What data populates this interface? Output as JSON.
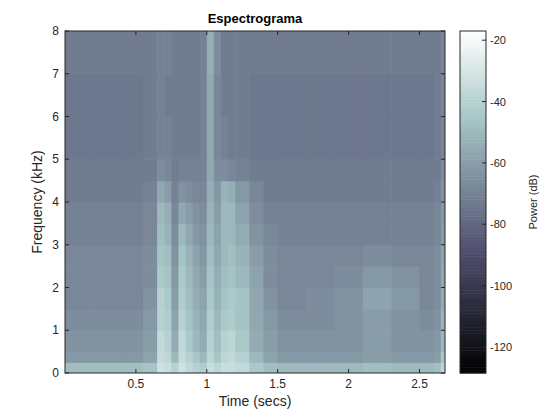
{
  "chart_data": {
    "type": "heatmap",
    "title": "Espectrograma",
    "x_label": "Time (secs)",
    "y_label": "Frequency (kHz)",
    "colorbar_label": "Power (dB)",
    "xlim": [
      0,
      2.68
    ],
    "ylim": [
      0,
      8
    ],
    "xticks": [
      0.5,
      1,
      1.5,
      2,
      2.5
    ],
    "yticks": [
      0,
      1,
      2,
      3,
      4,
      5,
      6,
      7,
      8
    ],
    "x_bins": [
      0,
      0.2,
      0.4,
      0.55,
      0.65,
      0.7,
      0.75,
      0.8,
      0.85,
      0.9,
      0.95,
      1.0,
      1.05,
      1.1,
      1.15,
      1.2,
      1.3,
      1.4,
      1.5,
      1.7,
      1.9,
      2.1,
      2.3,
      2.5,
      2.6,
      2.65,
      2.68
    ],
    "y_bins": [
      0,
      0.25,
      0.5,
      1,
      1.5,
      2,
      2.5,
      3,
      3.5,
      4,
      4.5,
      5,
      6,
      7,
      8
    ],
    "values": [
      [
        -48,
        -48,
        -48,
        -46,
        -32,
        -34,
        -40,
        -32,
        -36,
        -40,
        -42,
        -34,
        -38,
        -34,
        -34,
        -36,
        -44,
        -48,
        -50,
        -50,
        -50,
        -48,
        -50,
        -50,
        -48,
        -38
      ],
      [
        -62,
        -62,
        -62,
        -58,
        -35,
        -38,
        -50,
        -35,
        -40,
        -45,
        -50,
        -38,
        -45,
        -38,
        -36,
        -40,
        -50,
        -58,
        -62,
        -62,
        -62,
        -60,
        -62,
        -62,
        -60,
        -45
      ],
      [
        -64,
        -64,
        -64,
        -60,
        -36,
        -40,
        -55,
        -36,
        -44,
        -50,
        -55,
        -40,
        -48,
        -40,
        -38,
        -44,
        -55,
        -60,
        -64,
        -64,
        -64,
        -60,
        -64,
        -64,
        -62,
        -50
      ],
      [
        -66,
        -66,
        -66,
        -62,
        -40,
        -42,
        -58,
        -40,
        -46,
        -52,
        -56,
        -42,
        -50,
        -44,
        -42,
        -46,
        -56,
        -62,
        -66,
        -66,
        -64,
        -60,
        -64,
        -66,
        -64,
        -52
      ],
      [
        -68,
        -68,
        -68,
        -64,
        -40,
        -44,
        -60,
        -42,
        -48,
        -54,
        -58,
        -44,
        -52,
        -46,
        -44,
        -46,
        -56,
        -64,
        -68,
        -66,
        -64,
        -58,
        -62,
        -68,
        -66,
        -55
      ],
      [
        -68,
        -68,
        -68,
        -66,
        -44,
        -46,
        -62,
        -44,
        -50,
        -56,
        -60,
        -46,
        -54,
        -48,
        -46,
        -50,
        -58,
        -66,
        -68,
        -68,
        -66,
        -62,
        -64,
        -68,
        -66,
        -56
      ],
      [
        -68,
        -68,
        -68,
        -66,
        -46,
        -48,
        -64,
        -46,
        -52,
        -58,
        -62,
        -48,
        -56,
        -50,
        -48,
        -52,
        -60,
        -66,
        -68,
        -68,
        -68,
        -66,
        -68,
        -68,
        -66,
        -58
      ],
      [
        -70,
        -70,
        -70,
        -68,
        -48,
        -52,
        -66,
        -50,
        -56,
        -62,
        -64,
        -50,
        -58,
        -50,
        -50,
        -55,
        -64,
        -68,
        -70,
        -70,
        -70,
        -70,
        -70,
        -70,
        -68,
        -60
      ],
      [
        -70,
        -70,
        -70,
        -68,
        -50,
        -54,
        -68,
        -56,
        -60,
        -64,
        -66,
        -52,
        -60,
        -50,
        -50,
        -58,
        -66,
        -70,
        -70,
        -70,
        -70,
        -70,
        -70,
        -70,
        -68,
        -62
      ],
      [
        -72,
        -72,
        -72,
        -70,
        -56,
        -60,
        -70,
        -64,
        -66,
        -68,
        -68,
        -54,
        -62,
        -52,
        -54,
        -62,
        -68,
        -72,
        -72,
        -72,
        -72,
        -72,
        -72,
        -72,
        -70,
        -64
      ],
      [
        -72,
        -72,
        -72,
        -72,
        -66,
        -68,
        -72,
        -70,
        -70,
        -70,
        -70,
        -56,
        -66,
        -66,
        -68,
        -70,
        -72,
        -72,
        -72,
        -72,
        -72,
        -72,
        -72,
        -72,
        -72,
        -66
      ],
      [
        -74,
        -74,
        -74,
        -72,
        -70,
        -70,
        -72,
        -72,
        -72,
        -72,
        -70,
        -56,
        -68,
        -70,
        -72,
        -72,
        -74,
        -74,
        -74,
        -74,
        -74,
        -74,
        -74,
        -74,
        -72,
        -68
      ],
      [
        -74,
        -74,
        -74,
        -72,
        -70,
        -72,
        -72,
        -72,
        -72,
        -72,
        -70,
        -56,
        -68,
        -72,
        -72,
        -72,
        -74,
        -74,
        -74,
        -74,
        -74,
        -74,
        -74,
        -74,
        -72,
        -68
      ],
      [
        -72,
        -72,
        -72,
        -72,
        -70,
        -70,
        -72,
        -72,
        -72,
        -72,
        -70,
        -54,
        -66,
        -72,
        -72,
        -72,
        -72,
        -72,
        -72,
        -72,
        -72,
        -72,
        -72,
        -72,
        -72,
        -68
      ]
    ],
    "color_range": [
      -128.5,
      -17
    ],
    "color_ticks": [
      -120,
      -100,
      -80,
      -60,
      -40,
      -20
    ]
  }
}
